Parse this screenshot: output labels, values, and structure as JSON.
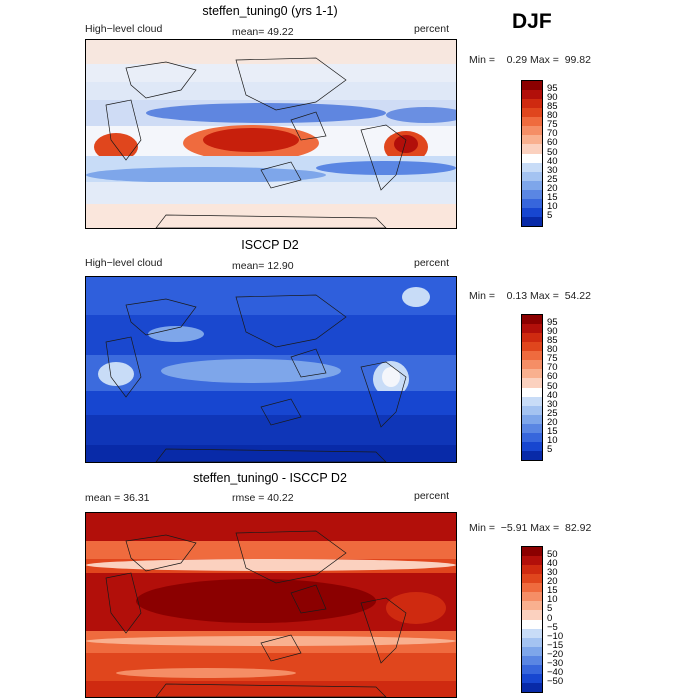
{
  "season": "DJF",
  "panels": [
    {
      "title": "steffen_tuning0 (yrs 1-1)",
      "left_label": "High−level cloud",
      "mid_label": "mean=  49.22",
      "right_label": "percent",
      "minmax": "Min =    0.29 Max =  99.82",
      "map_style": "model",
      "colorbar_labels": [
        "95",
        "90",
        "85",
        "80",
        "75",
        "70",
        "60",
        "50",
        "40",
        "30",
        "25",
        "20",
        "15",
        "10",
        "5"
      ],
      "colorbar_colors": [
        "#8b0000",
        "#b20f0a",
        "#cf2a10",
        "#e0461d",
        "#ef6b3e",
        "#f58e66",
        "#f9b08f",
        "#fbd1bf",
        "#ffffff",
        "#c8dcf7",
        "#a4c3f1",
        "#7ea6ea",
        "#5a86e3",
        "#3766dc",
        "#1746d0",
        "#082aa8"
      ]
    },
    {
      "title": "ISCCP D2",
      "left_label": "High−level cloud",
      "mid_label": "mean=  12.90",
      "right_label": "percent",
      "minmax": "Min =    0.13 Max =  54.22",
      "map_style": "obs",
      "colorbar_labels": [
        "95",
        "90",
        "85",
        "80",
        "75",
        "70",
        "60",
        "50",
        "40",
        "30",
        "25",
        "20",
        "15",
        "10",
        "5"
      ],
      "colorbar_colors": [
        "#8b0000",
        "#b20f0a",
        "#cf2a10",
        "#e0461d",
        "#ef6b3e",
        "#f58e66",
        "#f9b08f",
        "#fbd1bf",
        "#ffffff",
        "#c8dcf7",
        "#a4c3f1",
        "#7ea6ea",
        "#5a86e3",
        "#3766dc",
        "#1746d0",
        "#082aa8"
      ]
    },
    {
      "title": "steffen_tuning0 - ISCCP D2",
      "left_label": "mean =   36.31",
      "mid_label": "rmse =   40.22",
      "right_label": "percent",
      "minmax": "Min =  −5.91 Max =  82.92",
      "map_style": "diff",
      "colorbar_labels": [
        "50",
        "40",
        "30",
        "20",
        "15",
        "10",
        "5",
        "0",
        "−5",
        "−10",
        "−15",
        "−20",
        "−30",
        "−40",
        "−50"
      ],
      "colorbar_colors": [
        "#8b0000",
        "#b20f0a",
        "#cf2a10",
        "#e0461d",
        "#ef6b3e",
        "#f58e66",
        "#f9b08f",
        "#fbd1bf",
        "#ffffff",
        "#c8dcf7",
        "#a4c3f1",
        "#7ea6ea",
        "#5a86e3",
        "#3766dc",
        "#1746d0",
        "#082aa8"
      ]
    }
  ]
}
